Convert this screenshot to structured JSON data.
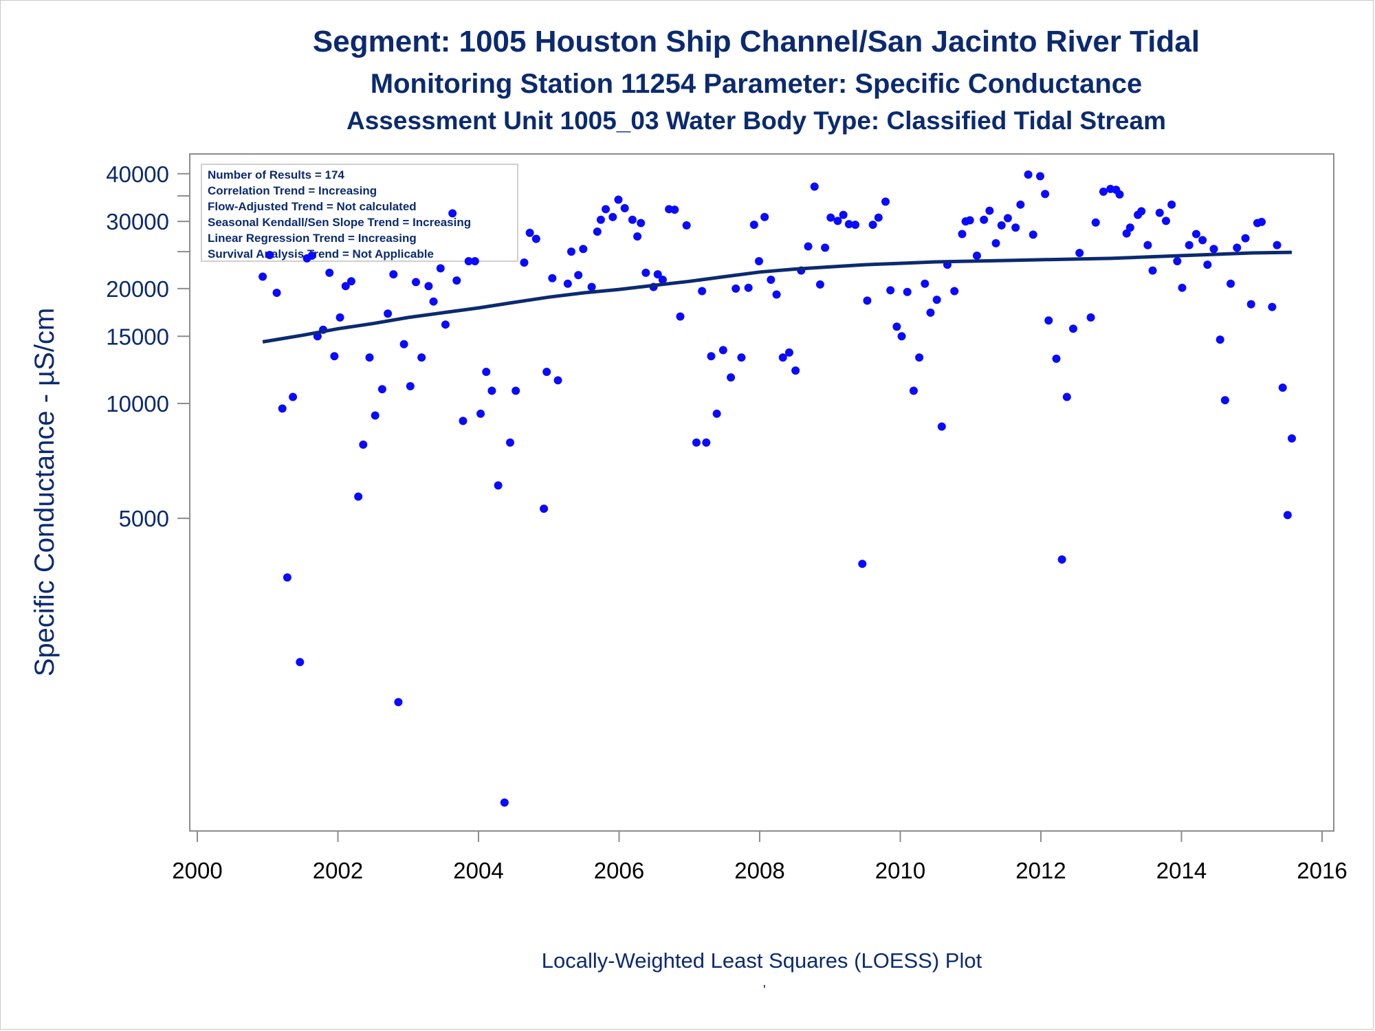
{
  "chart_data": {
    "type": "scatter",
    "title": "Segment: 1005  Houston Ship Channel/San Jacinto River Tidal",
    "subtitle": "Monitoring Station 11254 Parameter: Specific Conductance",
    "subtitle2": "Assessment Unit 1005_03   Water Body Type: Classified Tidal Stream",
    "ylabel": "Specific Conductance -  µS/cm",
    "xlabel": "",
    "footnote": "Locally-Weighted Least Squares (LOESS) Plot",
    "footnote_mark": "'",
    "y_scale": "log",
    "xlim": [
      2000,
      2016
    ],
    "ylim": [
      800,
      42000
    ],
    "x_ticks": [
      2000,
      2002,
      2004,
      2006,
      2008,
      2010,
      2012,
      2014,
      2016
    ],
    "x_tick_labels": [
      "2000",
      "2002",
      "2004",
      "2006",
      "2008",
      "2010",
      "2012",
      "2014",
      "2016"
    ],
    "y_ticks": [
      5000,
      10000,
      15000,
      20000,
      30000,
      40000
    ],
    "y_tick_labels": [
      "5000",
      "10000",
      "15000",
      "20000",
      "30000",
      "40000"
    ],
    "y_minor_ticks": [
      25000,
      35000
    ],
    "grid": false,
    "legend_position": "top-left",
    "summary_box": [
      "Number of Results = 174",
      "Correlation Trend = Increasing",
      "Flow-Adjusted Trend = Not calculated",
      "Seasonal Kendall/Sen Slope Trend = Increasing",
      "Linear Regression Trend = Increasing",
      "Survival Analysis Trend = Not Applicable"
    ],
    "point_color": "#0a0aff",
    "line_color": "#0b2a6f",
    "points": [
      [
        2000.93,
        21500
      ],
      [
        2001.03,
        24500
      ],
      [
        2001.13,
        19500
      ],
      [
        2001.21,
        9700
      ],
      [
        2001.28,
        3500
      ],
      [
        2001.36,
        10400
      ],
      [
        2001.46,
        2100
      ],
      [
        2001.56,
        24000
      ],
      [
        2001.63,
        24400
      ],
      [
        2001.71,
        15000
      ],
      [
        2001.79,
        15600
      ],
      [
        2001.88,
        22000
      ],
      [
        2001.95,
        13300
      ],
      [
        2002.03,
        16800
      ],
      [
        2002.11,
        20300
      ],
      [
        2002.19,
        20900
      ],
      [
        2002.29,
        5700
      ],
      [
        2002.36,
        7800
      ],
      [
        2002.45,
        13200
      ],
      [
        2002.53,
        9300
      ],
      [
        2002.63,
        10900
      ],
      [
        2002.71,
        17200
      ],
      [
        2002.79,
        21800
      ],
      [
        2002.86,
        1650
      ],
      [
        2002.94,
        14300
      ],
      [
        2003.03,
        11100
      ],
      [
        2003.11,
        20800
      ],
      [
        2003.19,
        13200
      ],
      [
        2003.29,
        20300
      ],
      [
        2003.36,
        18500
      ],
      [
        2003.46,
        22600
      ],
      [
        2003.53,
        16100
      ],
      [
        2003.63,
        31500
      ],
      [
        2003.69,
        21000
      ],
      [
        2003.78,
        9000
      ],
      [
        2003.86,
        23600
      ],
      [
        2003.95,
        23600
      ],
      [
        2004.03,
        9400
      ],
      [
        2004.11,
        12100
      ],
      [
        2004.19,
        10800
      ],
      [
        2004.28,
        6100
      ],
      [
        2004.37,
        900
      ],
      [
        2004.45,
        7900
      ],
      [
        2004.53,
        10800
      ],
      [
        2004.65,
        23400
      ],
      [
        2004.73,
        28000
      ],
      [
        2004.82,
        27000
      ],
      [
        2004.93,
        5300
      ],
      [
        2004.97,
        12100
      ],
      [
        2005.05,
        21300
      ],
      [
        2005.13,
        11500
      ],
      [
        2005.27,
        20600
      ],
      [
        2005.32,
        25000
      ],
      [
        2005.42,
        21700
      ],
      [
        2005.49,
        25400
      ],
      [
        2005.61,
        20200
      ],
      [
        2005.69,
        28200
      ],
      [
        2005.74,
        30300
      ],
      [
        2005.81,
        32300
      ],
      [
        2005.91,
        30800
      ],
      [
        2005.99,
        34200
      ],
      [
        2006.08,
        32500
      ],
      [
        2006.19,
        30300
      ],
      [
        2006.26,
        27400
      ],
      [
        2006.31,
        29700
      ],
      [
        2006.38,
        22000
      ],
      [
        2006.49,
        20200
      ],
      [
        2006.55,
        21800
      ],
      [
        2006.62,
        21100
      ],
      [
        2006.71,
        32300
      ],
      [
        2006.79,
        32200
      ],
      [
        2006.87,
        16900
      ],
      [
        2006.96,
        29300
      ],
      [
        2007.1,
        7900
      ],
      [
        2007.18,
        19700
      ],
      [
        2007.24,
        7900
      ],
      [
        2007.31,
        13300
      ],
      [
        2007.39,
        9400
      ],
      [
        2007.48,
        13800
      ],
      [
        2007.59,
        11700
      ],
      [
        2007.66,
        20000
      ],
      [
        2007.74,
        13200
      ],
      [
        2007.84,
        20100
      ],
      [
        2007.92,
        29400
      ],
      [
        2007.99,
        23600
      ],
      [
        2008.07,
        30800
      ],
      [
        2008.16,
        21100
      ],
      [
        2008.24,
        19300
      ],
      [
        2008.33,
        13200
      ],
      [
        2008.42,
        13600
      ],
      [
        2008.51,
        12200
      ],
      [
        2008.59,
        22300
      ],
      [
        2008.69,
        25800
      ],
      [
        2008.78,
        37000
      ],
      [
        2008.86,
        20500
      ],
      [
        2008.93,
        25600
      ],
      [
        2009.01,
        30700
      ],
      [
        2009.11,
        30100
      ],
      [
        2009.19,
        31200
      ],
      [
        2009.27,
        29500
      ],
      [
        2009.36,
        29400
      ],
      [
        2009.46,
        3800
      ],
      [
        2009.53,
        18600
      ],
      [
        2009.61,
        29400
      ],
      [
        2009.69,
        30700
      ],
      [
        2009.79,
        33800
      ],
      [
        2009.86,
        19800
      ],
      [
        2009.95,
        15900
      ],
      [
        2010.02,
        15000
      ],
      [
        2010.1,
        19600
      ],
      [
        2010.19,
        10800
      ],
      [
        2010.27,
        13200
      ],
      [
        2010.35,
        20600
      ],
      [
        2010.43,
        17300
      ],
      [
        2010.52,
        18700
      ],
      [
        2010.59,
        8700
      ],
      [
        2010.67,
        23100
      ],
      [
        2010.77,
        19700
      ],
      [
        2010.88,
        27800
      ],
      [
        2010.93,
        30000
      ],
      [
        2010.99,
        30200
      ],
      [
        2011.09,
        24400
      ],
      [
        2011.19,
        30300
      ],
      [
        2011.27,
        32000
      ],
      [
        2011.36,
        26300
      ],
      [
        2011.44,
        29300
      ],
      [
        2011.53,
        30600
      ],
      [
        2011.64,
        28900
      ],
      [
        2011.71,
        33200
      ],
      [
        2011.82,
        39800
      ],
      [
        2011.89,
        27700
      ],
      [
        2011.99,
        39400
      ],
      [
        2012.06,
        35400
      ],
      [
        2012.11,
        16500
      ],
      [
        2012.22,
        13100
      ],
      [
        2012.3,
        3900
      ],
      [
        2012.37,
        10400
      ],
      [
        2012.46,
        15700
      ],
      [
        2012.55,
        24800
      ],
      [
        2012.71,
        16800
      ],
      [
        2012.78,
        29800
      ],
      [
        2012.89,
        35900
      ],
      [
        2012.99,
        36500
      ],
      [
        2013.07,
        36300
      ],
      [
        2013.12,
        35300
      ],
      [
        2013.22,
        27900
      ],
      [
        2013.27,
        28900
      ],
      [
        2013.38,
        31200
      ],
      [
        2013.43,
        31900
      ],
      [
        2013.52,
        26000
      ],
      [
        2013.59,
        22300
      ],
      [
        2013.69,
        31600
      ],
      [
        2013.78,
        30100
      ],
      [
        2013.86,
        33200
      ],
      [
        2013.94,
        23600
      ],
      [
        2014.01,
        20100
      ],
      [
        2014.11,
        26000
      ],
      [
        2014.21,
        27800
      ],
      [
        2014.3,
        26800
      ],
      [
        2014.37,
        23100
      ],
      [
        2014.46,
        25400
      ],
      [
        2014.55,
        14700
      ],
      [
        2014.62,
        10200
      ],
      [
        2014.7,
        20600
      ],
      [
        2014.79,
        25600
      ],
      [
        2014.91,
        27100
      ],
      [
        2014.99,
        18200
      ],
      [
        2015.08,
        29700
      ],
      [
        2015.14,
        29900
      ],
      [
        2015.29,
        17900
      ],
      [
        2015.36,
        26000
      ],
      [
        2015.44,
        11000
      ],
      [
        2015.51,
        5100
      ],
      [
        2015.57,
        8100
      ]
    ],
    "loess": [
      [
        2000.93,
        14500
      ],
      [
        2001.5,
        15100
      ],
      [
        2002.0,
        15700
      ],
      [
        2002.5,
        16200
      ],
      [
        2003.0,
        16800
      ],
      [
        2003.5,
        17300
      ],
      [
        2004.0,
        17800
      ],
      [
        2004.5,
        18400
      ],
      [
        2005.0,
        19000
      ],
      [
        2005.5,
        19500
      ],
      [
        2006.0,
        19900
      ],
      [
        2006.5,
        20400
      ],
      [
        2007.0,
        20900
      ],
      [
        2007.5,
        21500
      ],
      [
        2008.0,
        22100
      ],
      [
        2008.5,
        22500
      ],
      [
        2009.0,
        22800
      ],
      [
        2009.5,
        23100
      ],
      [
        2010.0,
        23300
      ],
      [
        2010.5,
        23500
      ],
      [
        2011.0,
        23600
      ],
      [
        2011.5,
        23700
      ],
      [
        2012.0,
        23800
      ],
      [
        2012.5,
        23900
      ],
      [
        2013.0,
        24000
      ],
      [
        2013.5,
        24200
      ],
      [
        2014.0,
        24400
      ],
      [
        2014.5,
        24600
      ],
      [
        2015.0,
        24800
      ],
      [
        2015.57,
        24900
      ]
    ]
  }
}
